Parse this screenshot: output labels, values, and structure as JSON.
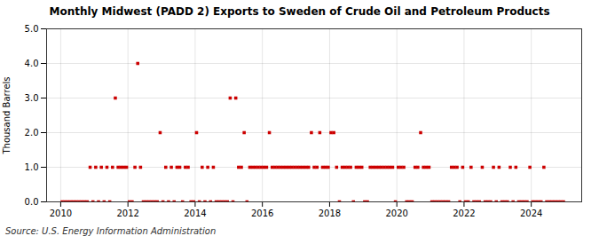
{
  "chart_data": {
    "type": "scatter",
    "title": "Monthly Midwest (PADD 2) Exports to Sweden of Crude Oil and Petroleum Products",
    "ylabel": "Thousand Barrels",
    "annotations": [
      "Source: U.S. Energy Information Administration"
    ],
    "color": "#cc0000",
    "marker": "square",
    "grid": true,
    "xlim": [
      2009.58,
      2025.5
    ],
    "xticks": [
      2010,
      2012,
      2014,
      2016,
      2018,
      2020,
      2022,
      2024
    ],
    "ylim": [
      0.0,
      5.0
    ],
    "yticks": [
      {
        "value": 0,
        "label": "0.0"
      },
      {
        "value": 1,
        "label": "1.0"
      },
      {
        "value": 2,
        "label": "2.0"
      },
      {
        "value": 3,
        "label": "3.0"
      },
      {
        "value": 4,
        "label": "4.0"
      },
      {
        "value": 5,
        "label": "5.0"
      }
    ],
    "x": [
      2010.0416666666667,
      2010.125,
      2010.2083333333333,
      2010.2916666666667,
      2010.375,
      2010.4583333333333,
      2010.5416666666667,
      2010.625,
      2010.7083333333333,
      2010.7916666666667,
      2010.875,
      2010.9583333333333,
      2011.0416666666667,
      2011.125,
      2011.2083333333333,
      2011.2916666666667,
      2011.375,
      2011.4583333333333,
      2011.5416666666667,
      2011.625,
      2011.7083333333333,
      2011.7916666666667,
      2011.875,
      2011.9583333333333,
      2012.0416666666667,
      2012.125,
      2012.2083333333333,
      2012.2916666666667,
      2012.375,
      2012.4583333333333,
      2012.5416666666667,
      2012.625,
      2012.7083333333333,
      2012.7916666666667,
      2012.875,
      2012.9583333333333,
      2013.0416666666667,
      2013.125,
      2013.2083333333333,
      2013.2916666666667,
      2013.375,
      2013.4583333333333,
      2013.5416666666667,
      2013.625,
      2013.7083333333333,
      2013.7916666666667,
      2013.875,
      2013.9583333333333,
      2014.0416666666667,
      2014.125,
      2014.2083333333333,
      2014.2916666666667,
      2014.375,
      2014.4583333333333,
      2014.5416666666667,
      2014.625,
      2014.7083333333333,
      2014.7916666666667,
      2014.875,
      2014.9583333333333,
      2015.0416666666667,
      2015.125,
      2015.2083333333333,
      2015.2916666666667,
      2015.375,
      2015.4583333333333,
      2015.5416666666667,
      2015.625,
      2015.7083333333333,
      2015.7916666666667,
      2015.875,
      2015.9583333333333,
      2016.0416666666667,
      2016.125,
      2016.2083333333333,
      2016.2916666666667,
      2016.375,
      2016.4583333333333,
      2016.5416666666667,
      2016.625,
      2016.7083333333333,
      2016.7916666666667,
      2016.875,
      2016.9583333333333,
      2017.0416666666667,
      2017.125,
      2017.2083333333333,
      2017.2916666666667,
      2017.375,
      2017.4583333333333,
      2017.5416666666667,
      2017.625,
      2017.7083333333333,
      2017.7916666666667,
      2017.875,
      2017.9583333333333,
      2018.0416666666667,
      2018.125,
      2018.2083333333333,
      2018.2916666666667,
      2018.375,
      2018.4583333333333,
      2018.5416666666667,
      2018.625,
      2018.7083333333333,
      2018.7916666666667,
      2018.875,
      2018.9583333333333,
      2019.0416666666667,
      2019.125,
      2019.2083333333333,
      2019.2916666666667,
      2019.375,
      2019.4583333333333,
      2019.5416666666667,
      2019.625,
      2019.7083333333333,
      2019.7916666666667,
      2019.875,
      2019.9583333333333,
      2020.0416666666667,
      2020.125,
      2020.2083333333333,
      2020.2916666666667,
      2020.375,
      2020.4583333333333,
      2020.5416666666667,
      2020.625,
      2020.7083333333333,
      2020.7916666666667,
      2020.875,
      2020.9583333333333,
      2021.0416666666667,
      2021.125,
      2021.2083333333333,
      2021.2916666666667,
      2021.375,
      2021.4583333333333,
      2021.5416666666667,
      2021.625,
      2021.7083333333333,
      2021.7916666666667,
      2021.875,
      2021.9583333333333,
      2022.0416666666667,
      2022.125,
      2022.2083333333333,
      2022.2916666666667,
      2022.375,
      2022.4583333333333,
      2022.5416666666667,
      2022.625,
      2022.7083333333333,
      2022.7916666666667,
      2022.875,
      2022.9583333333333,
      2023.0416666666667,
      2023.125,
      2023.2083333333333,
      2023.2916666666667,
      2023.375,
      2023.4583333333333,
      2023.5416666666667,
      2023.625,
      2023.7083333333333,
      2023.7916666666667,
      2023.875,
      2023.9583333333333,
      2024.0416666666667,
      2024.125,
      2024.2083333333333,
      2024.2916666666667,
      2024.375,
      2024.4583333333333,
      2024.5416666666667,
      2024.625,
      2024.7083333333333,
      2024.7916666666667,
      2024.875,
      2024.9583333333333
    ],
    "values": [
      0,
      0,
      0,
      0,
      0,
      0,
      0,
      0,
      0,
      0,
      1,
      0,
      1,
      0,
      1,
      0,
      1,
      0,
      1,
      3,
      1,
      1,
      1,
      1,
      0,
      0,
      1,
      4,
      1,
      0,
      0,
      0,
      0,
      0,
      0,
      2,
      0,
      1,
      0,
      1,
      0,
      1,
      1,
      0,
      1,
      1,
      0,
      0,
      2,
      0,
      1,
      0,
      1,
      0,
      1,
      0,
      0,
      0,
      0,
      0,
      3,
      0,
      3,
      1,
      1,
      2,
      0,
      1,
      1,
      1,
      1,
      1,
      1,
      1,
      2,
      1,
      1,
      1,
      1,
      1,
      1,
      1,
      1,
      1,
      1,
      1,
      1,
      1,
      1,
      2,
      1,
      1,
      2,
      1,
      1,
      1,
      2,
      2,
      1,
      0,
      1,
      1,
      1,
      1,
      0,
      1,
      1,
      1,
      0,
      0,
      1,
      1,
      1,
      1,
      1,
      1,
      1,
      1,
      1,
      0,
      1,
      1,
      1,
      0,
      0,
      0,
      1,
      1,
      2,
      1,
      1,
      1,
      0,
      0,
      0,
      0,
      0,
      0,
      0,
      1,
      1,
      1,
      0,
      1,
      0,
      0,
      1,
      0,
      0,
      0,
      1,
      0,
      0,
      0,
      1,
      0,
      1,
      0,
      0,
      0,
      1,
      0,
      1,
      0,
      0,
      0,
      0,
      1,
      0,
      0,
      0,
      0,
      1,
      0,
      0,
      0,
      0,
      0,
      0,
      0
    ]
  }
}
